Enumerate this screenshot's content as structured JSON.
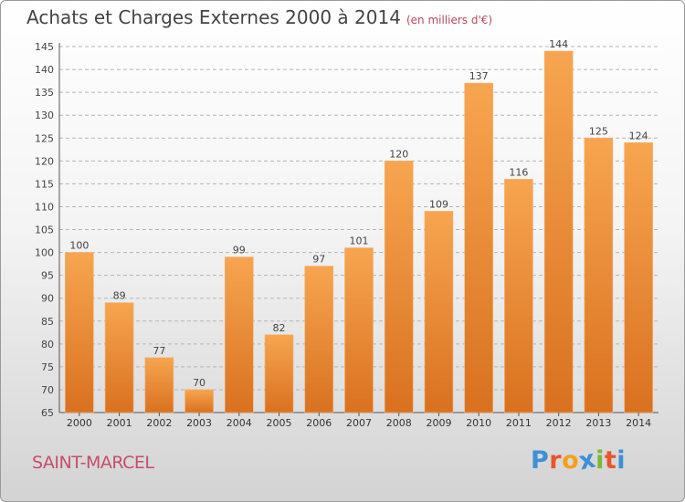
{
  "header": {
    "title": "Achats et Charges Externes 2000 à 2014",
    "subtitle": "(en milliers d'€)"
  },
  "footer": {
    "commune": "SAINT-MARCEL",
    "logo_letters": [
      "P",
      "r",
      "o",
      "x",
      "i",
      "t",
      "i"
    ],
    "logo_colors": [
      "#3f8fd6",
      "#e8552f",
      "#f2a01c",
      "#3f8fd6",
      "#78b83a",
      "#e8552f",
      "#3f8fd6"
    ]
  },
  "chart_data": {
    "type": "bar",
    "title": "Achats et Charges Externes 2000 à 2014",
    "subtitle": "(en milliers d'€)",
    "categories": [
      "2000",
      "2001",
      "2002",
      "2003",
      "2004",
      "2005",
      "2006",
      "2007",
      "2008",
      "2009",
      "2010",
      "2011",
      "2012",
      "2013",
      "2014"
    ],
    "values": [
      100,
      89,
      77,
      70,
      99,
      82,
      97,
      101,
      120,
      109,
      137,
      116,
      144,
      125,
      124
    ],
    "ylim": [
      65,
      145
    ],
    "yticks": [
      65,
      70,
      75,
      80,
      85,
      90,
      95,
      100,
      105,
      110,
      115,
      120,
      125,
      130,
      135,
      140,
      145
    ],
    "grid": "horizontal dashed",
    "bar_color_top": "#f7a550",
    "bar_color_bottom": "#d9711f"
  }
}
